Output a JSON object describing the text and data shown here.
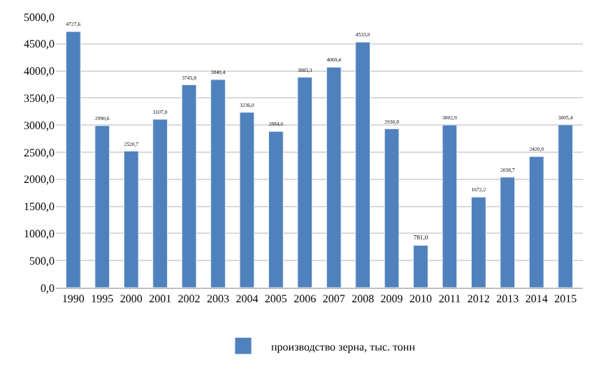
{
  "chart_data": {
    "type": "bar",
    "categories": [
      "1990",
      "1995",
      "2000",
      "2001",
      "2002",
      "2003",
      "2004",
      "2005",
      "2006",
      "2007",
      "2008",
      "2009",
      "2010",
      "2011",
      "2012",
      "2013",
      "2014",
      "2015"
    ],
    "series": [
      {
        "name": "производство зерна, тыс. тонн",
        "color": "#4f81bd",
        "values": [
          4727.6,
          2990.6,
          2520.7,
          3107.0,
          3743.8,
          3840.4,
          3236.0,
          2884.0,
          3883.3,
          4069.4,
          4533.0,
          2930.8,
          781.0,
          3002.9,
          1672.2,
          2038.7,
          2420.9,
          3005.4
        ],
        "value_labels": [
          "4727,6",
          "2990,6",
          "2520,7",
          "3107,0",
          "3743,8",
          "3840,4",
          "3236,0",
          "2884,0",
          "3883,3",
          "4069,4",
          "4533,0",
          "2930,8",
          "781,0",
          "3002,9",
          "1672,2",
          "2038,7",
          "2420,9",
          "3005,4"
        ]
      }
    ],
    "ylim": [
      0,
      5000
    ],
    "yticks": [
      {
        "value": 0,
        "label": "0,0"
      },
      {
        "value": 500,
        "label": "500,0"
      },
      {
        "value": 1000,
        "label": "1000,0"
      },
      {
        "value": 1500,
        "label": "1500,0"
      },
      {
        "value": 2000,
        "label": "2000,0"
      },
      {
        "value": 2500,
        "label": "2500,0"
      },
      {
        "value": 3000,
        "label": "3000,0"
      },
      {
        "value": 3500,
        "label": "3500,0"
      },
      {
        "value": 4000,
        "label": "4000,0"
      },
      {
        "value": 4500,
        "label": "4500,0"
      },
      {
        "value": 5000,
        "label": "5000,0"
      }
    ],
    "grid": "y",
    "legend": "bottom"
  }
}
